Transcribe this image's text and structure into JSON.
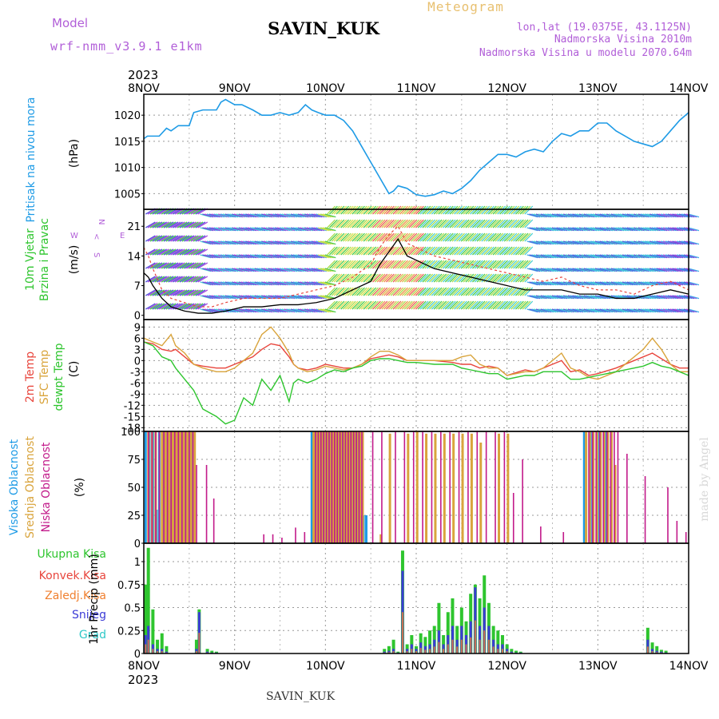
{
  "header": {
    "model_label": "Model",
    "model_name": "wrf-nmm_v3.9.1 e1km",
    "station": "SAVIN_KUK",
    "product": "Meteogram",
    "coords": "lon,lat (19.0375E, 43.1125N)",
    "elevation": "Nadmorska Visina 2010m",
    "model_elevation": "Nadmorska Visina u modelu 2070.64m"
  },
  "footer": {
    "station": "SAVIN_KUK",
    "credit": "made by Angel"
  },
  "colors": {
    "pressure": "#1e9be6",
    "temp2m": "#e8453c",
    "sfc_temp": "#d9a43c",
    "dewpoint": "#2ec52e",
    "cloud_high": "#1e9be6",
    "cloud_mid": "#d9a43c",
    "cloud_low": "#c21a8a",
    "precip_total": "#2ec52e",
    "precip_conv": "#e8453c",
    "precip_frozen": "#f08030",
    "precip_snow": "#3b3bd6",
    "precip_graupel": "#2ec8c8",
    "wind_speed": "#000000",
    "wind_gust": "#e8453c"
  },
  "chart_data": [
    {
      "type": "line",
      "title": "",
      "ylabel_lines": [
        "Pritisak na nivou mora",
        "(hPa)"
      ],
      "x_ticks": [
        "8NOV",
        "9NOV",
        "10NOV",
        "11NOV",
        "12NOV",
        "13NOV",
        "14NOV"
      ],
      "top_year": "2023",
      "ylim": [
        1002,
        1024
      ],
      "yticks": [
        1005,
        1010,
        1015,
        1020
      ],
      "x_days": [
        0,
        0.04,
        0.17,
        0.25,
        0.3,
        0.38,
        0.5,
        0.55,
        0.65,
        0.8,
        0.85,
        0.9,
        1.0,
        1.08,
        1.2,
        1.3,
        1.4,
        1.5,
        1.6,
        1.7,
        1.78,
        1.85,
        1.92,
        2.0,
        2.1,
        2.2,
        2.3,
        2.4,
        2.5,
        2.6,
        2.65,
        2.7,
        2.75,
        2.8,
        2.9,
        3.0,
        3.1,
        3.2,
        3.3,
        3.4,
        3.5,
        3.6,
        3.7,
        3.8,
        3.9,
        4.0,
        4.1,
        4.2,
        4.3,
        4.4,
        4.5,
        4.6,
        4.7,
        4.8,
        4.9,
        5.0,
        5.1,
        5.2,
        5.3,
        5.4,
        5.5,
        5.6,
        5.7,
        5.8,
        5.9,
        6.0
      ],
      "series": [
        {
          "values": [
            1015.5,
            1016,
            1016,
            1017.5,
            1017,
            1018,
            1018,
            1020.5,
            1021,
            1021,
            1022.5,
            1023,
            1022,
            1022,
            1021,
            1020,
            1020,
            1020.5,
            1020,
            1020.5,
            1022,
            1021,
            1020.5,
            1020,
            1020,
            1019,
            1017,
            1014,
            1011,
            1008,
            1006.5,
            1005,
            1005.5,
            1006.5,
            1006,
            1004.8,
            1004.5,
            1004.8,
            1005.5,
            1005,
            1006,
            1007.5,
            1009.5,
            1011,
            1012.5,
            1012.5,
            1012,
            1013,
            1013.5,
            1013,
            1015,
            1016.5,
            1016,
            1017,
            1017,
            1018.5,
            1018.5,
            1017,
            1016,
            1015,
            1014.5,
            1014,
            1015,
            1017,
            1019,
            1020.5
          ]
        }
      ]
    },
    {
      "type": "line",
      "title": "",
      "ylabel_lines": [
        "10m Vjetar",
        "Brzina i Pravac",
        "(m/s)"
      ],
      "compass_labels": [
        "N",
        "W",
        "<",
        "E",
        "S"
      ],
      "ylim": [
        -1,
        25
      ],
      "yticks": [
        0,
        7,
        14,
        21
      ],
      "x_days": [
        0,
        0.05,
        0.1,
        0.2,
        0.3,
        0.45,
        0.6,
        0.75,
        0.9,
        1.1,
        1.3,
        1.5,
        1.7,
        1.9,
        2.1,
        2.3,
        2.5,
        2.6,
        2.7,
        2.8,
        2.9,
        3.0,
        3.2,
        3.4,
        3.6,
        3.8,
        4.0,
        4.2,
        4.4,
        4.6,
        4.8,
        5.0,
        5.2,
        5.4,
        5.6,
        5.8,
        6.0
      ],
      "series": [
        {
          "values": [
            10,
            9,
            7,
            4,
            2,
            1,
            0.5,
            0.5,
            1,
            2,
            2,
            2.5,
            2.5,
            3,
            4,
            6,
            8,
            12,
            15,
            18,
            14,
            13,
            11,
            10,
            9,
            8,
            7,
            6,
            6,
            6,
            5,
            5,
            4,
            4,
            5,
            6,
            5
          ]
        },
        {
          "values": [
            16,
            14,
            11,
            6,
            4,
            3,
            2,
            2,
            3,
            4,
            4,
            4,
            5,
            6,
            7,
            9,
            12,
            16,
            19,
            21,
            17,
            16,
            14,
            13,
            12,
            11,
            10,
            9,
            8,
            9,
            7,
            6,
            6,
            5,
            7,
            8,
            6
          ]
        }
      ]
    },
    {
      "type": "line",
      "title": "",
      "ylabel_lines": [
        "2m Temp",
        "SFC Temp",
        "dewpt Temp",
        "(C)"
      ],
      "ylim": [
        -19,
        11
      ],
      "yticks": [
        -18,
        -15,
        -12,
        -9,
        -6,
        -3,
        0,
        3,
        6,
        9
      ],
      "x_days": [
        0,
        0.1,
        0.2,
        0.3,
        0.35,
        0.45,
        0.55,
        0.65,
        0.8,
        0.9,
        1.0,
        1.1,
        1.2,
        1.3,
        1.4,
        1.5,
        1.6,
        1.65,
        1.7,
        1.8,
        1.9,
        2.0,
        2.1,
        2.2,
        2.3,
        2.4,
        2.5,
        2.6,
        2.7,
        2.8,
        2.9,
        3.0,
        3.2,
        3.4,
        3.5,
        3.6,
        3.7,
        3.8,
        3.9,
        4.0,
        4.2,
        4.3,
        4.4,
        4.5,
        4.6,
        4.7,
        4.8,
        4.9,
        5.0,
        5.2,
        5.4,
        5.5,
        5.6,
        5.7,
        5.8,
        5.9,
        6.0
      ],
      "series": [
        {
          "values": [
            5,
            4.5,
            3,
            2.5,
            3,
            1,
            -1,
            -1.5,
            -2,
            -2,
            -1,
            0,
            1,
            3,
            4.5,
            4,
            1,
            -1,
            -2,
            -2.5,
            -2,
            -1,
            -1.5,
            -2,
            -2,
            -1,
            0.5,
            1,
            1.5,
            1,
            0,
            0,
            0,
            -0.5,
            -1,
            -1,
            -2,
            -1.5,
            -2,
            -4,
            -2.5,
            -3,
            -2,
            -1,
            0,
            -3,
            -2.5,
            -4,
            -3.5,
            -2,
            0,
            1,
            2,
            0.5,
            -1,
            -2,
            -2
          ]
        },
        {
          "values": [
            6,
            5,
            4,
            7,
            4,
            2,
            -1,
            -2,
            -3,
            -3,
            -2,
            0,
            2,
            7,
            9,
            6,
            2,
            -1,
            -2,
            -3,
            -2.5,
            -1.5,
            -2,
            -2.5,
            -2,
            -1,
            1,
            2.5,
            2.5,
            1.5,
            0,
            0,
            0,
            0,
            1,
            1.5,
            -1,
            -2,
            -2,
            -4,
            -3,
            -3,
            -2,
            0,
            2,
            -2,
            -3,
            -4.5,
            -5,
            -3,
            1,
            3,
            6,
            3,
            -1,
            -3,
            -3
          ]
        },
        {
          "values": [
            5,
            4,
            1,
            0,
            -2,
            -5,
            -8,
            -13,
            -15,
            -17,
            -16,
            -10,
            -12,
            -5,
            -8,
            -4,
            -11,
            -6,
            -5,
            -6,
            -5,
            -3.5,
            -2.5,
            -3,
            -2,
            -1.5,
            0,
            0.5,
            0.5,
            0,
            -0.5,
            -0.5,
            -1,
            -1,
            -2,
            -2.5,
            -3,
            -3.5,
            -3.5,
            -5,
            -4,
            -4,
            -3,
            -3,
            -3,
            -5,
            -5,
            -4.5,
            -4,
            -3,
            -2,
            -1.5,
            -0.5,
            -1.5,
            -2,
            -3,
            -4
          ]
        }
      ]
    },
    {
      "type": "bar",
      "title": "",
      "ylabel_lines": [
        "Visoka Oblacnost",
        "Srednja Oblacnost",
        "Niska Oblacnost",
        "(%)"
      ],
      "ylim": [
        0,
        100
      ],
      "yticks": [
        0,
        25,
        50,
        75,
        100
      ],
      "series": [
        {
          "x_days": [
            0.02,
            0.06,
            0.1,
            0.14,
            0.17,
            0.21,
            0.25,
            0.29,
            0.33,
            0.37,
            0.41,
            0.45,
            0.49,
            0.53,
            1.85,
            1.88,
            1.91,
            1.94,
            1.97,
            2.0,
            2.03,
            2.06,
            2.09,
            2.12,
            2.15,
            2.18,
            2.21,
            2.24,
            2.27,
            2.3,
            2.33,
            2.36,
            2.39,
            2.42,
            2.45,
            4.85,
            4.92,
            5.0,
            5.08
          ],
          "values": [
            100,
            100,
            100,
            30,
            100,
            100,
            100,
            100,
            100,
            100,
            100,
            100,
            100,
            100,
            100,
            100,
            100,
            100,
            100,
            100,
            100,
            100,
            100,
            100,
            100,
            100,
            100,
            100,
            100,
            100,
            100,
            100,
            25,
            25,
            25,
            100,
            100,
            100,
            100
          ]
        },
        {
          "x_days": [
            0.04,
            0.08,
            0.12,
            0.19,
            0.23,
            0.27,
            0.31,
            0.35,
            0.39,
            0.43,
            0.47,
            0.51,
            0.55,
            1.86,
            1.89,
            1.92,
            1.95,
            1.98,
            2.01,
            2.04,
            2.07,
            2.1,
            2.13,
            2.16,
            2.19,
            2.22,
            2.25,
            2.28,
            2.31,
            2.34,
            2.37,
            2.4,
            2.6,
            2.7,
            2.9,
            3.0,
            3.1,
            3.2,
            3.3,
            3.4,
            3.5,
            3.6,
            3.7,
            3.9,
            4.0,
            4.86,
            4.9,
            4.94,
            4.98,
            5.02,
            5.06,
            5.1,
            5.14,
            5.18
          ],
          "values": [
            100,
            100,
            100,
            100,
            100,
            100,
            100,
            100,
            100,
            100,
            100,
            100,
            100,
            100,
            100,
            100,
            100,
            100,
            100,
            100,
            100,
            100,
            100,
            100,
            100,
            100,
            100,
            100,
            100,
            100,
            100,
            100,
            8,
            98,
            98,
            100,
            98,
            98,
            98,
            98,
            98,
            98,
            90,
            98,
            98,
            100,
            100,
            100,
            100,
            100,
            100,
            100,
            100,
            70
          ]
        },
        {
          "x_days": [
            0.03,
            0.07,
            0.11,
            0.15,
            0.2,
            0.24,
            0.28,
            0.32,
            0.36,
            0.4,
            0.44,
            0.48,
            0.52,
            0.56,
            0.67,
            0.75,
            1.3,
            1.4,
            1.5,
            1.65,
            1.75,
            1.87,
            1.9,
            1.93,
            1.96,
            1.99,
            2.02,
            2.05,
            2.08,
            2.11,
            2.14,
            2.17,
            2.2,
            2.23,
            2.26,
            2.29,
            2.32,
            2.35,
            2.38,
            2.5,
            2.6,
            2.75,
            2.85,
            2.95,
            3.05,
            3.15,
            3.25,
            3.35,
            3.45,
            3.55,
            3.65,
            3.75,
            3.85,
            3.95,
            4.05,
            4.15,
            4.35,
            4.6,
            4.88,
            4.92,
            4.96,
            5.0,
            5.04,
            5.08,
            5.12,
            5.16,
            5.2,
            5.3,
            5.5,
            5.75,
            5.85,
            5.95
          ],
          "values": [
            100,
            100,
            100,
            100,
            100,
            100,
            100,
            100,
            100,
            100,
            100,
            100,
            100,
            70,
            70,
            40,
            8,
            8,
            5,
            14,
            10,
            100,
            100,
            100,
            100,
            100,
            100,
            100,
            100,
            100,
            100,
            100,
            100,
            100,
            100,
            100,
            100,
            100,
            100,
            100,
            100,
            100,
            100,
            100,
            100,
            100,
            100,
            100,
            100,
            100,
            100,
            100,
            100,
            100,
            45,
            75,
            15,
            10,
            100,
            100,
            100,
            100,
            100,
            100,
            100,
            100,
            100,
            80,
            60,
            50,
            20,
            10
          ]
        }
      ]
    },
    {
      "type": "bar",
      "title": "",
      "ylabel_lines": [
        "1hr Precip (mm)"
      ],
      "legend": [
        "Ukupna Kisa",
        "Konvek.Kisa",
        "Zaledj.Kisa",
        "Snijeg",
        "Grad"
      ],
      "x_ticks": [
        "8NOV",
        "9NOV",
        "10NOV",
        "11NOV",
        "12NOV",
        "13NOV",
        "14NOV"
      ],
      "bottom_year": "2023",
      "ylim": [
        0,
        1.2
      ],
      "yticks": [
        0,
        0.25,
        0.5,
        0.75,
        1
      ],
      "x_days": [
        0.02,
        0.05,
        0.1,
        0.15,
        0.2,
        0.25,
        0.58,
        0.61,
        0.7,
        0.75,
        0.8,
        2.65,
        2.7,
        2.75,
        2.8,
        2.85,
        2.9,
        2.95,
        3.0,
        3.05,
        3.1,
        3.15,
        3.2,
        3.25,
        3.3,
        3.35,
        3.4,
        3.45,
        3.5,
        3.55,
        3.6,
        3.65,
        3.7,
        3.75,
        3.8,
        3.85,
        3.9,
        3.95,
        4.0,
        4.05,
        4.1,
        4.15,
        5.55,
        5.6,
        5.65,
        5.7,
        5.75
      ],
      "series": [
        {
          "name": "Ukupna Kisa",
          "values": [
            0.75,
            1.15,
            0.48,
            0.15,
            0.22,
            0.08,
            0.15,
            0.48,
            0.05,
            0.03,
            0.02,
            0.05,
            0.08,
            0.15,
            0.02,
            1.12,
            0.1,
            0.2,
            0.08,
            0.22,
            0.18,
            0.25,
            0.3,
            0.55,
            0.2,
            0.45,
            0.6,
            0.3,
            0.5,
            0.35,
            0.65,
            0.75,
            0.6,
            0.85,
            0.55,
            0.3,
            0.25,
            0.2,
            0.1,
            0.05,
            0.03,
            0.02,
            0.28,
            0.12,
            0.08,
            0.04,
            0.03
          ]
        },
        {
          "name": "Snijeg",
          "values": [
            0.2,
            0.3,
            0.1,
            0.05,
            0.05,
            0.02,
            0.05,
            0.45,
            0.02,
            0.01,
            0.01,
            0.02,
            0.03,
            0.05,
            0.01,
            0.9,
            0.05,
            0.1,
            0.05,
            0.12,
            0.08,
            0.1,
            0.15,
            0.25,
            0.1,
            0.2,
            0.3,
            0.15,
            0.3,
            0.2,
            0.35,
            0.72,
            0.3,
            0.5,
            0.3,
            0.15,
            0.1,
            0.1,
            0.05,
            0.02,
            0.01,
            0.01,
            0.15,
            0.05,
            0.03,
            0.02,
            0.01
          ]
        }
      ]
    }
  ]
}
